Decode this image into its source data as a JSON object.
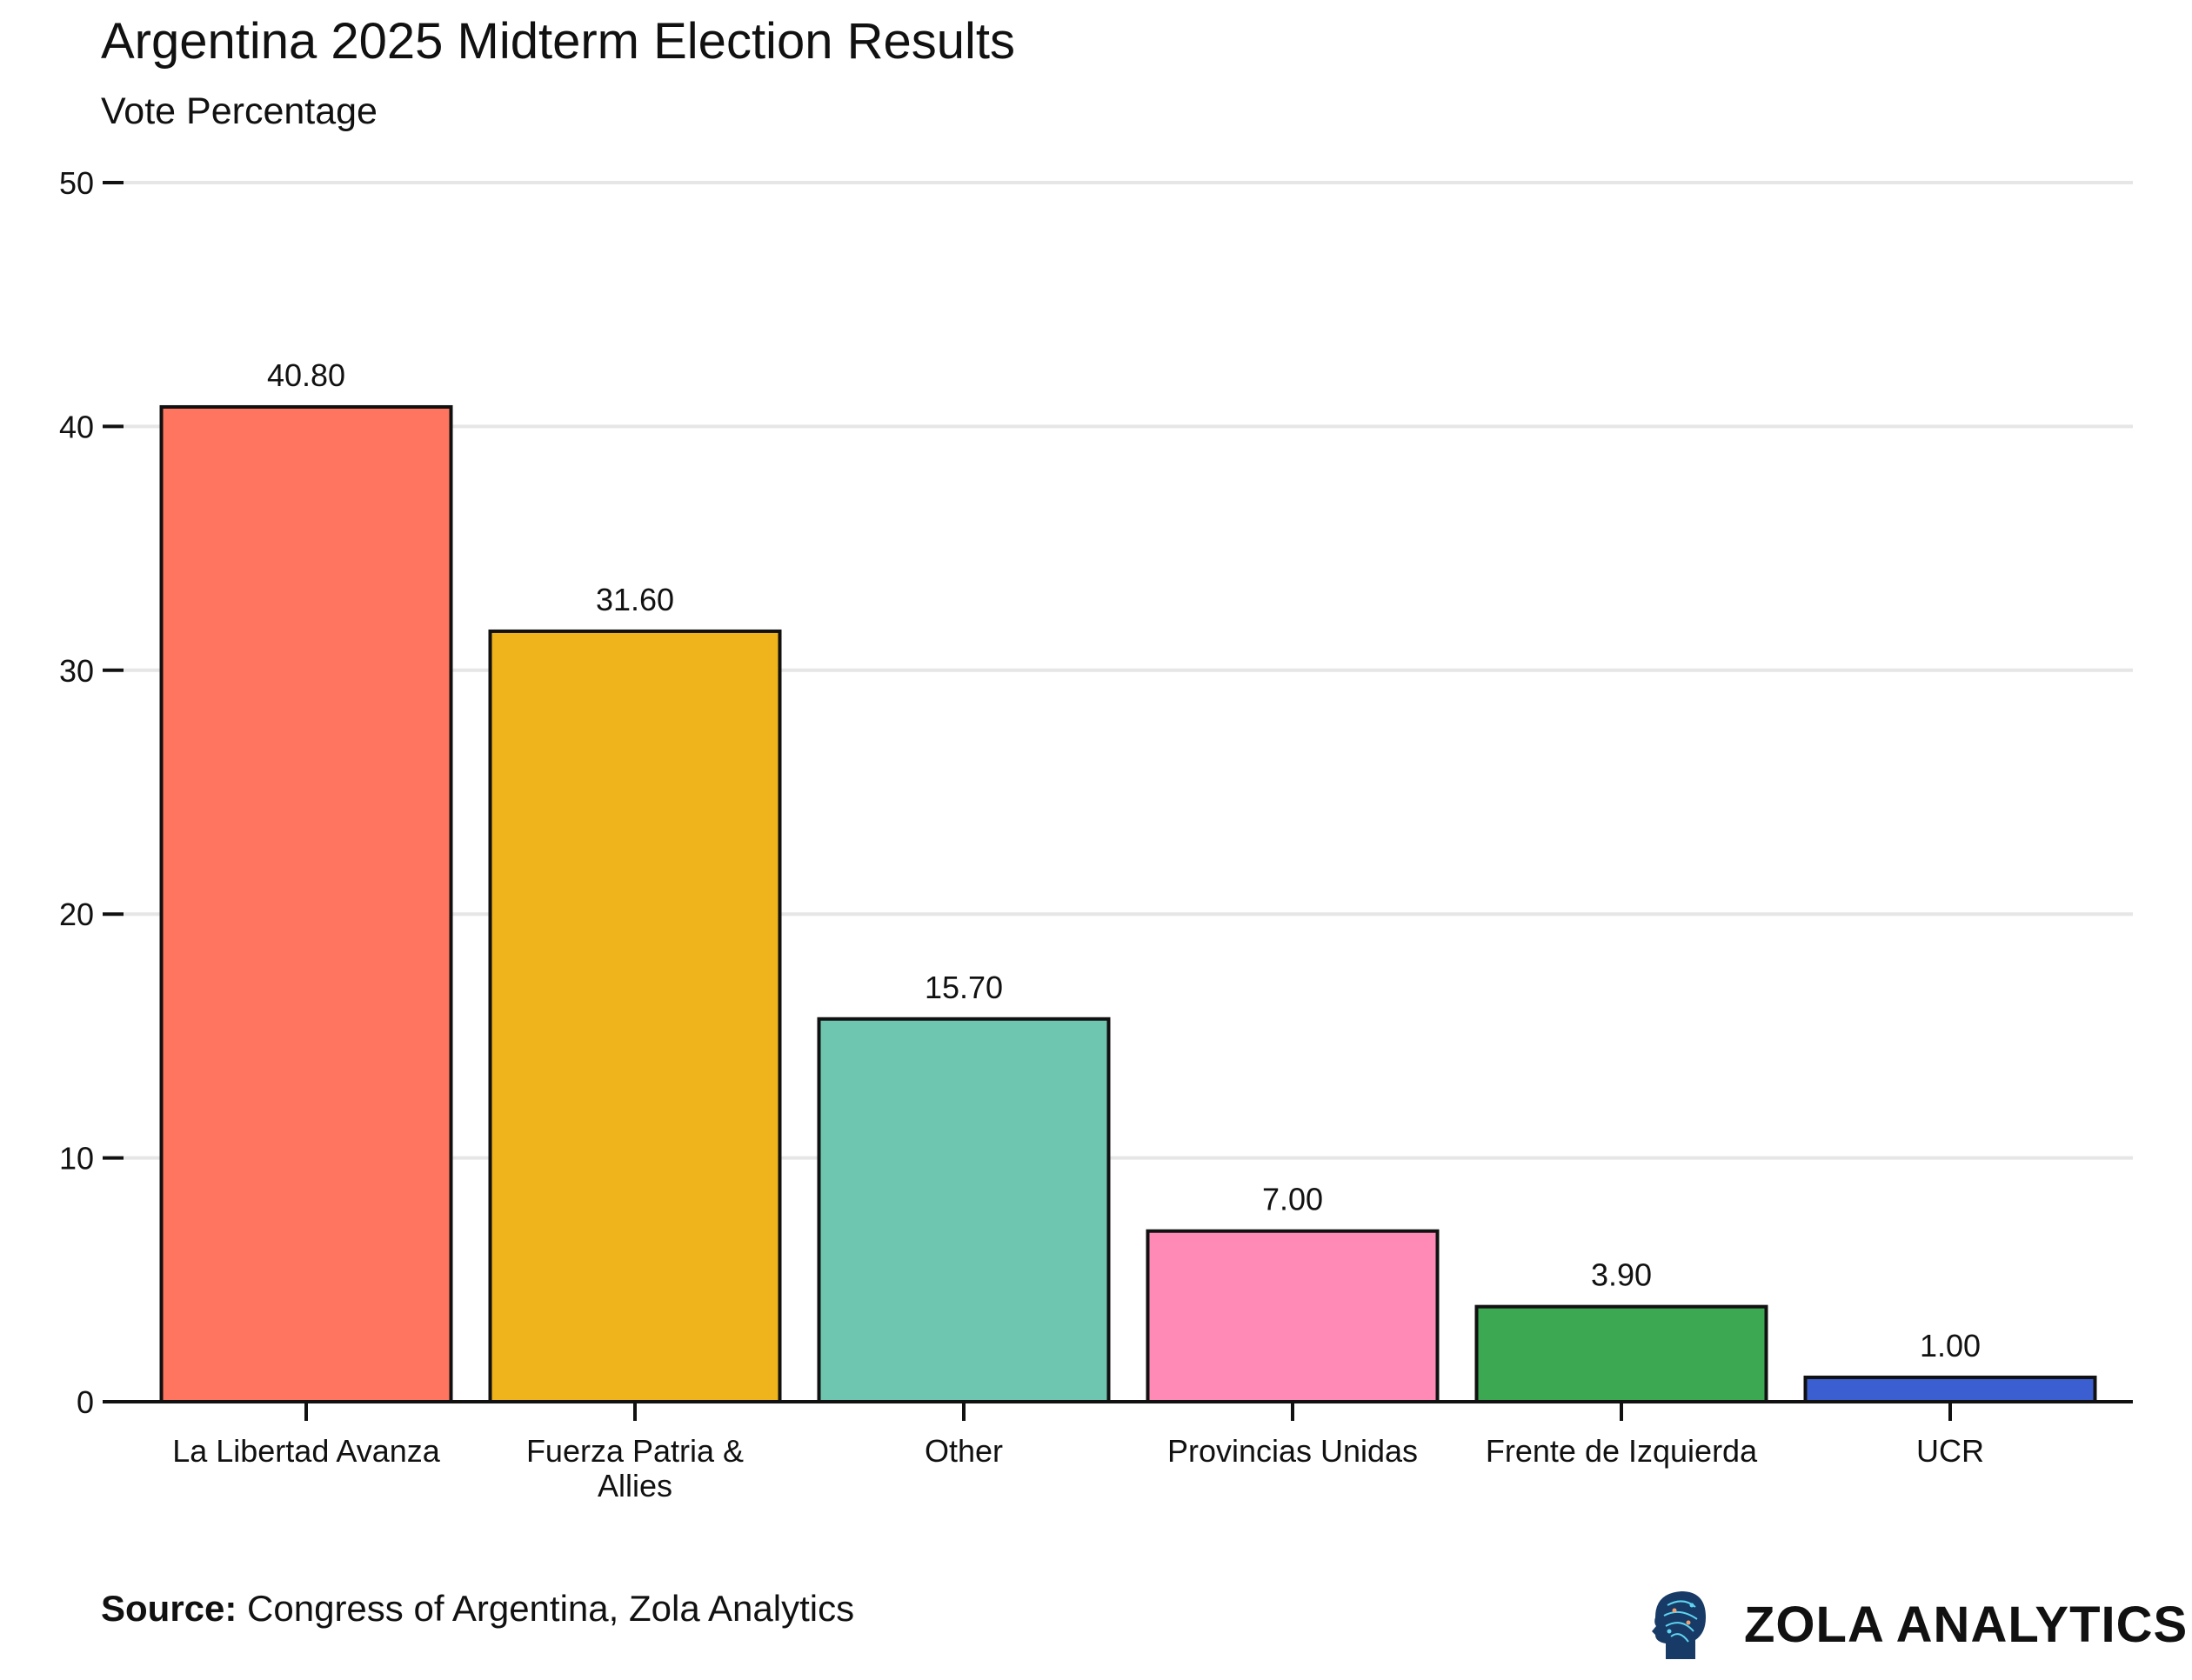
{
  "chart_data": {
    "type": "bar",
    "title": "Argentina 2025 Midterm Election Results",
    "subtitle": "Vote Percentage",
    "xlabel": "",
    "ylabel": "",
    "ylim": [
      0,
      50
    ],
    "yticks": [
      "0",
      "10",
      "20",
      "30",
      "40",
      "50"
    ],
    "grid": true,
    "categories": [
      "La Libertad Avanza",
      "Fuerza Patria & Allies",
      "Other",
      "Provincias Unidas",
      "Frente de Izquierda",
      "UCR"
    ],
    "category_lines": [
      [
        "La Libertad Avanza"
      ],
      [
        "Fuerza Patria &",
        "Allies"
      ],
      [
        "Other"
      ],
      [
        "Provincias Unidas"
      ],
      [
        "Frente de Izquierda"
      ],
      [
        "UCR"
      ]
    ],
    "values": [
      40.8,
      31.6,
      15.7,
      7.0,
      3.9,
      1.0
    ],
    "data_labels": [
      "40.80",
      "31.60",
      "15.70",
      "7.00",
      "3.90",
      "1.00"
    ],
    "colors": [
      "#FF7560",
      "#EFB31C",
      "#6EC6B1",
      "#FF8AB6",
      "#3CA851",
      "#3B5FD0"
    ]
  },
  "footer": {
    "source_label": "Source:",
    "source_text": " Congress of Argentina, Zola Analytics",
    "logo_text": "ZOLA ANALYTICS",
    "logo_icon": "brain-head-icon"
  }
}
